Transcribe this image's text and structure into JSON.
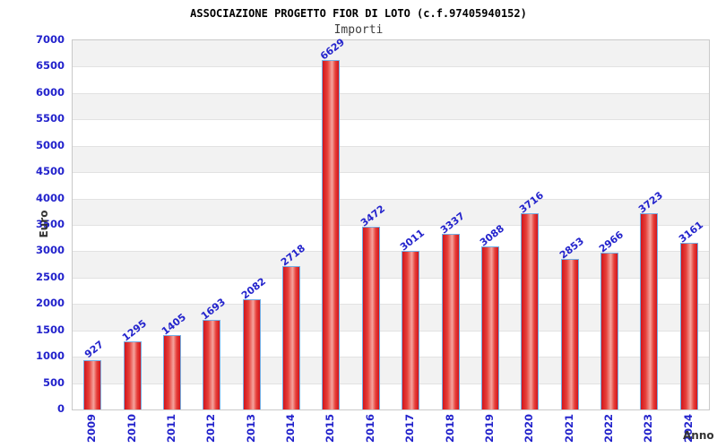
{
  "title": "ASSOCIAZIONE PROGETTO FIOR DI LOTO (c.f.97405940152)",
  "subtitle": "Importi",
  "chart_data": {
    "type": "bar",
    "title": "ASSOCIAZIONE PROGETTO FIOR DI LOTO (c.f.97405940152)",
    "subtitle": "Importi",
    "xlabel": "Anno",
    "ylabel": "Euro",
    "categories": [
      "2009",
      "2010",
      "2011",
      "2012",
      "2013",
      "2014",
      "2015",
      "2016",
      "2017",
      "2018",
      "2019",
      "2020",
      "2021",
      "2022",
      "2023",
      "2024"
    ],
    "values": [
      927,
      1295,
      1405,
      1693,
      2082,
      2718,
      6629,
      3472,
      3011,
      3337,
      3088,
      3716,
      2853,
      2966,
      3723,
      3161
    ],
    "ylim": [
      0,
      7000
    ],
    "ytick_step": 500,
    "legend": "none",
    "grid": "horizontal-bands-alternating",
    "bar_value_labels_rotated_deg": -38,
    "x_labels_rotated_deg": -90,
    "colors": {
      "bar_red_dark": "#d2151c",
      "bar_red": "#e6403a",
      "bar_highlight": "#f5a49e",
      "bar_border": "#74aee3",
      "label_blue": "#2323cc",
      "band_gray": "#f2f2f2",
      "band_white": "#ffffff",
      "gridline": "#e2e2e2",
      "plot_border": "#c9c9c9",
      "axis_title_color": "#333333",
      "title_color": "#000000",
      "subtitle_color": "#3d3d3d",
      "background": "#ffffff"
    }
  }
}
